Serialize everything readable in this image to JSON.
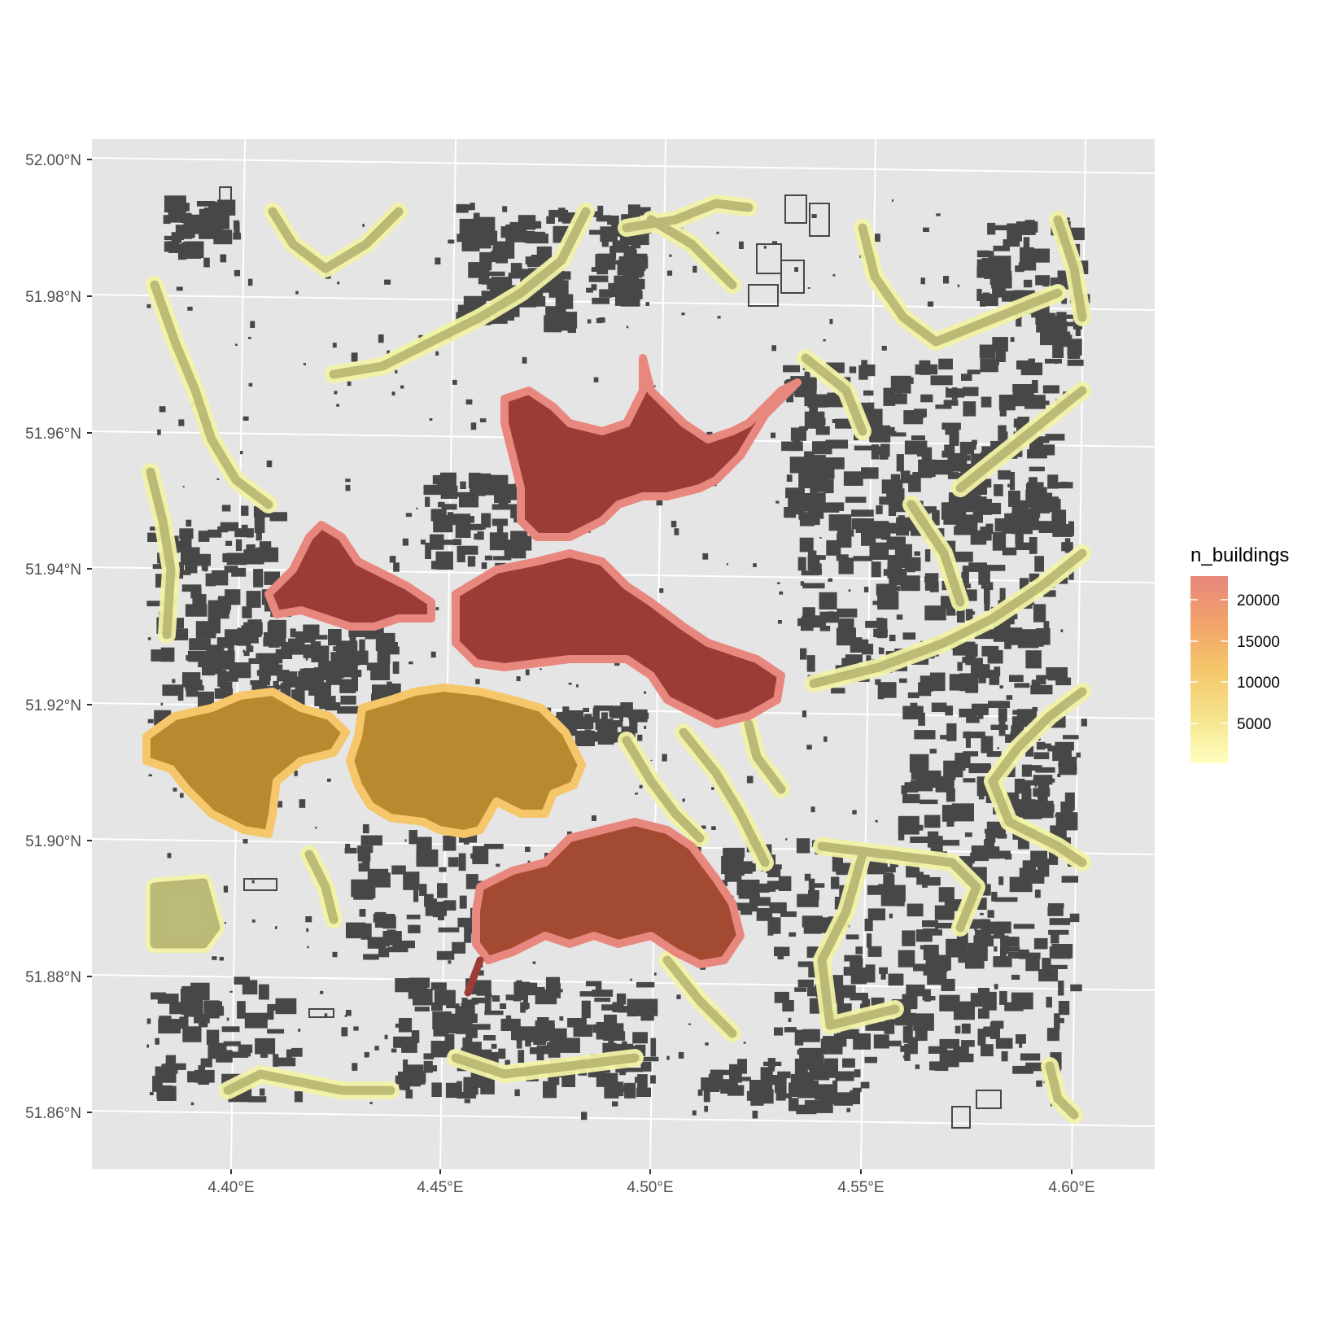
{
  "chart_data": {
    "type": "map",
    "x_axis": {
      "ticks": [
        "4.40°E",
        "4.45°E",
        "4.50°E",
        "4.55°E",
        "4.60°E"
      ]
    },
    "y_axis": {
      "ticks": [
        "52.00°N",
        "51.98°N",
        "51.96°N",
        "51.94°N",
        "51.92°N",
        "51.90°N",
        "51.88°N",
        "51.86°N"
      ]
    },
    "legend": {
      "title": "n_buildings",
      "position": "right",
      "scale": "continuous",
      "breaks": [
        "20000",
        "15000",
        "10000",
        "5000"
      ],
      "colors": [
        "#e8877e",
        "#f2a26a",
        "#f5c66a",
        "#f5e690",
        "#ffffc0"
      ]
    },
    "colors": {
      "panel_background": "#e5e5e5",
      "gridlines": "#ffffff",
      "buildings": "#474747",
      "cluster_high": "#9b3c36",
      "cluster_high_outline": "#e8877e",
      "cluster_mid_high": "#a34a32",
      "cluster_mid": "#b8892e",
      "cluster_low": "#b8b874",
      "cluster_low_outline": "#f2f2a6"
    },
    "grid": true
  }
}
